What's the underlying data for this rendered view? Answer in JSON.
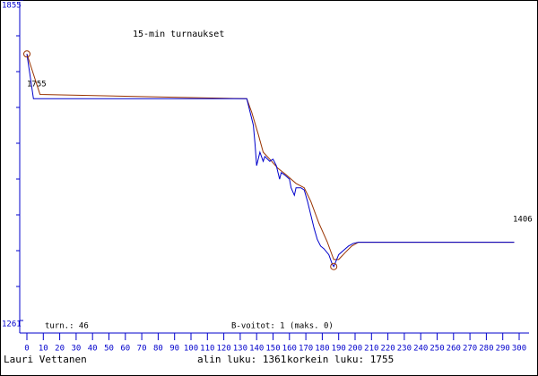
{
  "chart_data": {
    "type": "line",
    "title": "15-min turnaukset",
    "xlim": [
      0,
      300
    ],
    "xticks": [
      0,
      10,
      20,
      30,
      40,
      50,
      60,
      70,
      80,
      90,
      100,
      110,
      120,
      130,
      140,
      150,
      160,
      170,
      180,
      190,
      200,
      210,
      220,
      230,
      240,
      250,
      260,
      270,
      280,
      290,
      300
    ],
    "ylim": [
      1261,
      1855
    ],
    "yticks": [
      1261,
      1855
    ],
    "series": [
      {
        "color": "#0000cc",
        "x": [
          0,
          4,
          134,
          138,
          139,
          140,
          142,
          144,
          145,
          148,
          150,
          152,
          154,
          155,
          157,
          160,
          161,
          163,
          164,
          167,
          169,
          171,
          173,
          175,
          177,
          179,
          181,
          184,
          186,
          187,
          190,
          193,
          196,
          199,
          202,
          297
        ],
        "values": [
          1755,
          1672,
          1672,
          1623,
          1589,
          1548,
          1573,
          1556,
          1565,
          1556,
          1560,
          1548,
          1523,
          1535,
          1531,
          1523,
          1507,
          1493,
          1507,
          1507,
          1503,
          1482,
          1457,
          1432,
          1411,
          1399,
          1394,
          1383,
          1366,
          1361,
          1383,
          1391,
          1399,
          1404,
          1406,
          1406
        ]
      },
      {
        "color": "#993300",
        "x": [
          0,
          8,
          134,
          137,
          141,
          144,
          148,
          153,
          158,
          164,
          169,
          173,
          178,
          183,
          187,
          190,
          194,
          198,
          202,
          297
        ],
        "values": [
          1755,
          1680,
          1672,
          1647,
          1606,
          1573,
          1560,
          1543,
          1531,
          1515,
          1507,
          1482,
          1441,
          1407,
          1374,
          1374,
          1387,
          1399,
          1406,
          1406
        ]
      }
    ],
    "annotations": [
      "1755",
      "1406"
    ],
    "info_left": "turn.: 46",
    "info_mid": "B-voitot: 1 (maks. 0)",
    "author": "Lauri Vettanen",
    "min_label": "alin luku: 1361",
    "max_label": "korkein luku: 1755"
  }
}
